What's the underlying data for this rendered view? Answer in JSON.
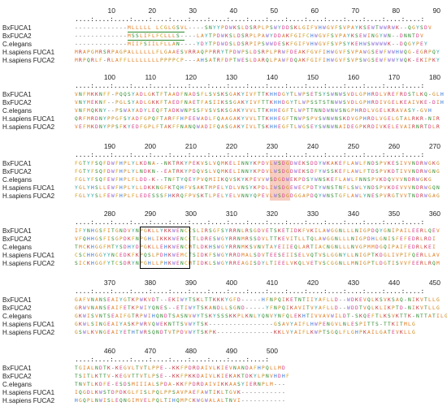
{
  "blocks": [
    {
      "ticks": [
        "10",
        "20",
        "30",
        "40",
        "50",
        "60",
        "70",
        "80",
        "90"
      ],
      "rows": [
        {
          "label": "BxFUCA1",
          "seq": "-------------MLLLLL LCGLGSVL----SNYYPDWKSLDSRPLPSWYDDSKLGIFVHWGVFSVPAYKSEWTWWRWK--QGYSDV"
        },
        {
          "label": "BxFUCA2",
          "seq": "-------------MSSLIFLFCLLLS----LAYTPDWKSLDSRPLPAWYDDAKFGIFCHWGVFSVPAYKSEWINGYWN--DNNTDV"
        },
        {
          "label": "C.elegans",
          "seq": "-------------MIIFSIILFLLAN----YDYTPDWDSLDSRPIPSWWDESKFGIFVHWGVFSVPSYKEHWSWWWWK--DQGYPEY"
        },
        {
          "label": "H.sapiens FUCA1",
          "seq": "MRAPGMRSRPAGPALLLLLLFLGAAESVRRAQPPRRYTPDWPSLDSRPLPRWFDEAKFGVFIHWGVFSVPAWGSEWFWWHWQG-EGRPQY"
        },
        {
          "label": "H.sapiens FUCA2",
          "seq": "MRPQRLF-RLAFFLLLLLLLLPPPPCP---AHSATRFDPTWESLDARQLPAWFDQAKFGIFIHWGVFSVPSWGSEWFWWYWQK-EKIPKY"
        }
      ]
    },
    {
      "ticks": [
        "100",
        "110",
        "120",
        "130",
        "140",
        "150",
        "160",
        "170",
        "180"
      ],
      "rows": [
        {
          "label": "BxFUCA1",
          "seq": "VNFMKKNFF-PQQSYADLGKTFTAADFNADSFLSVSKSGAKYIVFTTKHHDGYTLWPSETSYSWNWSVDLGPHRDLVREFRDSTLKQ-GLH"
        },
        {
          "label": "BxFUCA2",
          "seq": "VNYMEKNF--PGLSYADLGKKFTAEDFNAETFASIIKSSGAKYIVFTTKHHDGYTLWPSSTSTNWWSVDLGPHRDIVGELKEAIVKE-DIH"
        },
        {
          "label": "C.elegans",
          "seq": "VNFMQKNY--PSWAYADYLEQFTADKWNPSSFVSVSKSGAKYVVLTTKHHEGFTLWPTTNNDWNWSNGPHRDLVGELKRAVASY-GVH"
        },
        {
          "label": "H.sapiens FUCA1",
          "seq": "QRFMRDNYPPGFSYADFGPQFTARFFHPEEWADLFQAAGAKYVVLTTKHHEGFTNWPSPVSWNWNSKDVGPHRDLVGELGTALRKR-NIR"
        },
        {
          "label": "H.sapiens FUCA2",
          "seq": "VEFMKDNYPPSFKYEDFGPLFTAKFFNANQWADIFQASGAKYIVLTSKHHEGFTLWGSEYSWNWNAIDEGPKRDIVKELEVAIRNRTDLR"
        }
      ]
    },
    {
      "ticks": [
        "190",
        "200",
        "210",
        "220",
        "230",
        "240",
        "250",
        "260",
        "270"
      ],
      "rows": [
        {
          "label": "BxFUCA1",
          "seq": "FGTYFSQFDWFHPLYLKDNA--NKTRKYPEKVSLVQMKELINNYKPDVLWSDGDWEKSDDYWKAKEFLAWLFNDSPVKESIVVNDRWGKG"
        },
        {
          "label": "BxFUCA2",
          "seq": "FGTYFSQFDWFHPLYLNDKN--EATRKYPDQVSLVQMKELINNYKPDVLWSDGDWEKSDFYWSSKEFLAWLFTDSPVKDTIVVNDRWGNG"
        },
        {
          "label": "C.elegans",
          "seq": "FGLYFSQFEWFHPLFLDD-K--TNFTYQEYPVQMIIKQVSKYKPEVVWSDGDWEKPDSYWNSKEFLAWLFNNSPVKDQVVVNDRWGKG"
        },
        {
          "label": "H.sapiens FUCA1",
          "seq": "YGLYHSLLEWFHPLYLLDKKNGFKTQHFVSAKTMPELYDLVNSYKPDLIWSDGEWECPDTYWNSTNFLSWLYNDSPVKDEVVVNDRWGQN"
        },
        {
          "label": "H.sapiens FUCA2",
          "seq": "FGLYYSLFEWFHPLFLEDESSSFHKRQFPVSKTLPELYELVNNYQPEVLWSDGDGGAPDQYWNSTGFLAWLYNESPVRGTVVTNDRWGAG"
        }
      ]
    },
    {
      "ticks": [
        "280",
        "290",
        "300",
        "310",
        "320",
        "330",
        "340",
        "350",
        "360"
      ],
      "rows": [
        {
          "label": "BxFUCA1",
          "seq": "IFYNHGSFITGNDVYNPGKLLYKKWENCCSLIRSGFSYRRNLRSGDVETSKETIDKFVKILAWGGNLLLNIGPDQYGNIPAILEERLQEV"
        },
        {
          "label": "BxFUCA2",
          "seq": "VFQHHGSFISGPDKFNPGHLIKKKWENCCTLDRESWGYRRNMRSSDVLTTKEVITLLTQLAWGGNLLLNIGPDHLGNISFEFEDRLRDI"
        },
        {
          "label": "C.elegans",
          "seq": "TMCKHGGFMTYSDHYDPGKLLEHKWENCMTLDKHSWGYRRNMKSVNVTAYEIIEQLARTIACNGNLLLNVGPMMDGQIPAIFEDRLKEI"
        },
        {
          "label": "H.sapiens FUCA1",
          "seq": "CSCHHGGYYNCEDKFKPQSLPDHKWEMCTSIDKFSWGYRRDMALSDVTEESEIISELVQTVSLGGNYLLNIGPTKDGLIVPIFQERLLAV"
        },
        {
          "label": "H.sapiens FUCA2",
          "seq": "SICKHGGFYTCSDRYNPGHLLPHKWENCMTIDKLSWGYRREAGISDYLTIEELVKQLVETVSCGGNLLMNIGPTLDGTISVVFEERLRQM"
        }
      ]
    },
    {
      "ticks": [
        "370",
        "380",
        "390",
        "400",
        "410",
        "420",
        "430",
        "440",
        "450"
      ],
      "rows": [
        {
          "label": "BxFUCA1",
          "seq": "GAFVNANSEAIYGTKPWKVDT--EKIWYTSKLTTKKKYGFD-----HFNPQIKETNTIIYAFLLD--WDKEVQLKSVKSAQ-NIKVTLLG"
        },
        {
          "label": "BxFUCA2",
          "seq": "GRWVNANSEAIFETKPWIYQNES--ETIWYTSKANDLLSGND-----YFNPQIKAVITVYAFLLD--WDDTVQLKLIKPTD-NIKVTLLG"
        },
        {
          "label": "C.elegans",
          "seq": "GKWISVNTSEAIFGTRPWIHQNDTSASNVWYTSKYSSSKKPLKNLYQNVYNFQLEKHTIVVAVWILDT-SKQEFTLKSVKTTK-NTTATILG"
        },
        {
          "label": "H.sapiens FUCA1",
          "seq": "GKWLSINGEAIYASKPWRVQWEKNTTSVWYTSK----------------GSAVYAIFLHWPENGVLNLESPITTS-TTKITMLG"
        },
        {
          "label": "H.sapiens FUCA2",
          "seq": "GSWLKVNGEAIYETHTWRSQNDTVTPDVWYTSKPK--------------KKLVYAIFLKWPTSGQLFLGHPKAILGATEVKLLG"
        }
      ]
    },
    {
      "ticks": [
        "460",
        "470",
        "480",
        "490",
        "500"
      ],
      "rows": [
        {
          "label": "BxFUCA1",
          "seq": "TGIALNDTK-KEGVLTVTLPPE--KKFPDRDAIVLKIEVNANDAFHPQLLMD"
        },
        {
          "label": "BxFUCA2",
          "seq": "TSITLKTTV-KEGVTTVTLPSE--KKFPKKDAIVLKIEKAKTDKYLPNVHDHF"
        },
        {
          "label": "C.elegans",
          "seq": "TNVTLKDFE-ESDSMIIIALSPDA-KKFPDRDAIVIKKAASYIERNPLM---"
        },
        {
          "label": "H.sapiens FUCA1",
          "seq": "IQGDLKWSTDPDKGLFISLPQLPPSAVPAEFAWTIKLTGVK-----------"
        },
        {
          "label": "H.sapiens FUCA2",
          "seq": "HGQPLNWISLEQNGIMVELPQLTIHQMPCKWGWALALTNVI-----------"
        }
      ]
    }
  ],
  "colors": {
    "A": "#e07a1e",
    "V": "#e07a1e",
    "L": "#e07a1e",
    "I": "#e07a1e",
    "M": "#e07a1e",
    "F": "#d4a017",
    "W": "#8b6bd6",
    "Y": "#2aa3a3",
    "G": "#c48a1a",
    "P": "#c48a1a",
    "S": "#2b8a2b",
    "T": "#2b8a2b",
    "C": "#c0a000",
    "N": "#2b8a2b",
    "Q": "#2b8a2b",
    "D": "#d63a8a",
    "E": "#d63a8a",
    "K": "#c0303a",
    "R": "#c0303a",
    "H": "#2a6fd6",
    "-": "#555555",
    " ": "#555555"
  }
}
